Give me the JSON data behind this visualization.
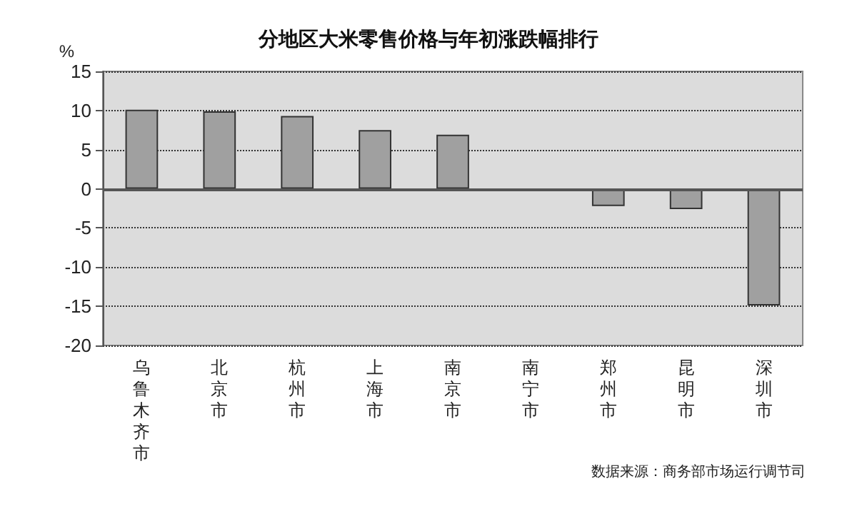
{
  "chart_data": {
    "type": "bar",
    "title": "分地区大米零售价格与年初涨跌幅排行",
    "ylabel": "%",
    "categories": [
      "乌鲁木齐市",
      "北京市",
      "杭州市",
      "上海市",
      "南京市",
      "南宁市",
      "郑州市",
      "昆明市",
      "深圳市"
    ],
    "values": [
      10.1,
      9.9,
      9.3,
      7.5,
      6.9,
      -0.2,
      -2.2,
      -2.6,
      -14.9
    ],
    "color": "#a0a0a0",
    "ylim": [
      -20,
      15
    ],
    "yticks": [
      -20,
      -15,
      -10,
      -5,
      0,
      5,
      10,
      15
    ],
    "grid": "y",
    "annotations": [
      "数据来源：商务部市场运行调节司"
    ]
  }
}
